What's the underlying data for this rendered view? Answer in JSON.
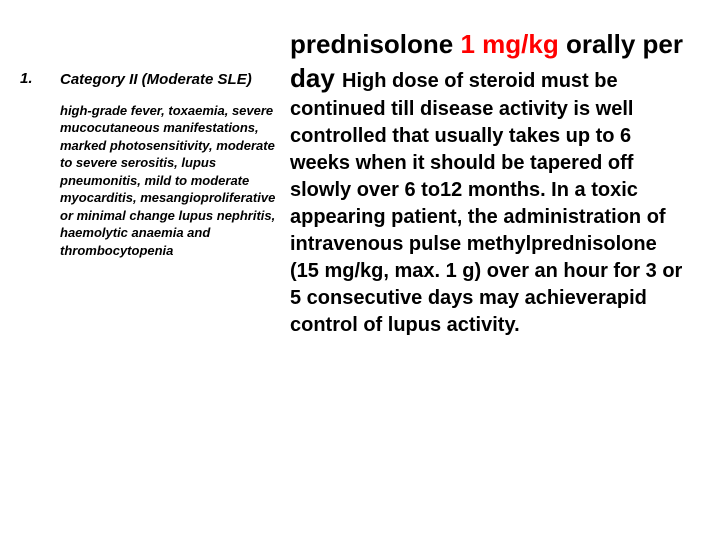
{
  "colors": {
    "background": "#ffffff",
    "text": "#000000",
    "dose_highlight": "#ff0000"
  },
  "typography": {
    "left_title_fontsize": 15,
    "left_body_fontsize": 13,
    "right_large_fontsize": 26,
    "right_body_fontsize": 20,
    "font_family": "Arial"
  },
  "left": {
    "number": "1.",
    "title": "Category II (Moderate SLE)",
    "body": "high-grade fever, toxaemia, severe mucocutaneous manifestations, marked photosensitivity, moderate to severe serositis, lupus pneumonitis, mild to moderate myocarditis, mesangioproliferative or minimal change lupus nephritis, haemolytic anaemia and thrombocytopenia"
  },
  "right": {
    "drug_name": "prednisolone ",
    "dose": "1 mg/kg",
    "route": " orally per day ",
    "rest": "High dose of steroid must be continued till disease activity is well controlled that usually takes up to 6 weeks when it should be tapered off slowly over 6 to12 months. In a toxic appearing patient, the administration of intravenous pulse methylprednisolone (15 mg/kg, max. 1 g) over an hour for 3 or 5 consecutive days may achieverapid control of lupus activity."
  }
}
